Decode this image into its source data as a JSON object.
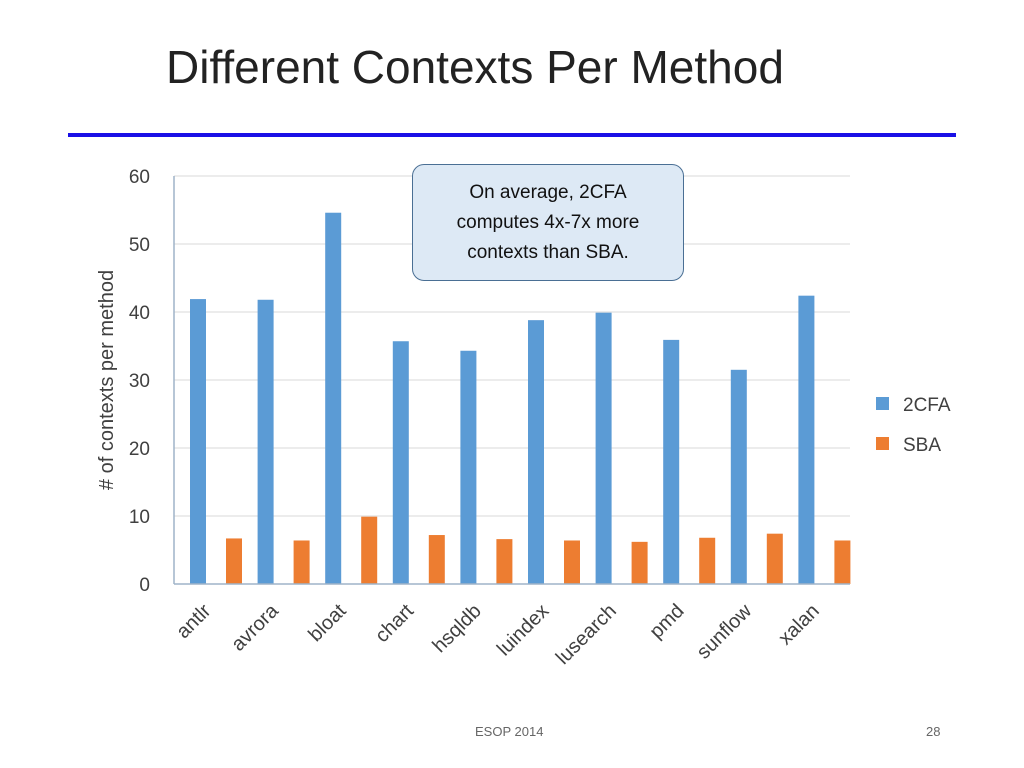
{
  "slide": {
    "title": "Different Contexts Per Method",
    "callout": "On average, 2CFA computes 4x-7x more contexts than SBA.",
    "footer": "ESOP 2014",
    "page_number": "28"
  },
  "colors": {
    "title_rule": "#1a10e6",
    "series_2cfa": "#5b9bd5",
    "series_sba": "#ed7d31",
    "gridline": "#d9d9d9",
    "axis": "#9fb3c8"
  },
  "chart_data": {
    "type": "bar",
    "title": "",
    "xlabel": "",
    "ylabel": "# of contexts per method",
    "ylim": [
      0,
      60
    ],
    "yticks": [
      0,
      10,
      20,
      30,
      40,
      50,
      60
    ],
    "grid": true,
    "legend_position": "right",
    "categories": [
      "antlr",
      "avrora",
      "bloat",
      "chart",
      "hsqldb",
      "luindex",
      "lusearch",
      "pmd",
      "sunflow",
      "xalan"
    ],
    "series": [
      {
        "name": "2CFA",
        "values": [
          41.9,
          41.8,
          54.6,
          35.7,
          34.3,
          38.8,
          39.9,
          35.9,
          31.5,
          42.4
        ]
      },
      {
        "name": "SBA",
        "values": [
          6.7,
          6.4,
          9.9,
          7.2,
          6.6,
          6.4,
          6.2,
          6.8,
          7.4,
          6.4
        ]
      }
    ]
  }
}
